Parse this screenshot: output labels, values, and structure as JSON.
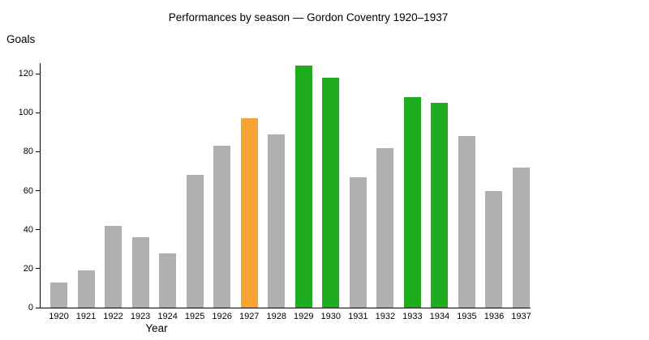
{
  "chart_data": {
    "type": "bar",
    "title": "Performances by season — Gordon Coventry 1920–1937",
    "xlabel": "Year",
    "ylabel": "Goals",
    "categories": [
      "1920",
      "1921",
      "1922",
      "1923",
      "1924",
      "1925",
      "1926",
      "1927",
      "1928",
      "1929",
      "1930",
      "1931",
      "1932",
      "1933",
      "1934",
      "1935",
      "1936",
      "1937"
    ],
    "values": [
      13,
      19,
      42,
      36,
      28,
      68,
      83,
      97,
      89,
      124,
      118,
      67,
      82,
      108,
      105,
      88,
      60,
      72
    ],
    "bar_colors": [
      "gray",
      "gray",
      "gray",
      "gray",
      "gray",
      "gray",
      "gray",
      "orange",
      "gray",
      "green",
      "green",
      "gray",
      "gray",
      "green",
      "green",
      "gray",
      "gray",
      "gray"
    ],
    "palette": {
      "gray": "#b0b0b0",
      "orange": "#f7a435",
      "green": "#1fad1f"
    },
    "text_color": "#000000",
    "axis_color": "#000000",
    "ylim": [
      0,
      125
    ],
    "yticks": [
      0,
      20,
      40,
      60,
      80,
      100,
      120
    ],
    "grid": false,
    "legend": null
  }
}
